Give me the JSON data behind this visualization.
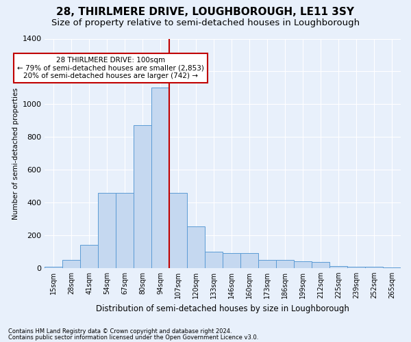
{
  "title1": "28, THIRLMERE DRIVE, LOUGHBOROUGH, LE11 3SY",
  "title2": "Size of property relative to semi-detached houses in Loughborough",
  "xlabel": "Distribution of semi-detached houses by size in Loughborough",
  "ylabel": "Number of semi-detached properties",
  "categories": [
    "15sqm",
    "28sqm",
    "41sqm",
    "54sqm",
    "67sqm",
    "80sqm",
    "94sqm",
    "107sqm",
    "120sqm",
    "133sqm",
    "146sqm",
    "160sqm",
    "173sqm",
    "186sqm",
    "199sqm",
    "212sqm",
    "225sqm",
    "239sqm",
    "252sqm",
    "265sqm"
  ],
  "values": [
    8,
    50,
    140,
    460,
    460,
    870,
    1100,
    460,
    255,
    100,
    90,
    90,
    50,
    50,
    40,
    35,
    10,
    8,
    8,
    4
  ],
  "bar_color": "#c5d8f0",
  "bar_edge_color": "#5b9bd5",
  "vline_color": "#c00000",
  "annotation_text": "28 THIRLMERE DRIVE: 100sqm\n← 79% of semi-detached houses are smaller (2,853)\n20% of semi-detached houses are larger (742) →",
  "annotation_box_color": "#ffffff",
  "annotation_box_edge": "#c00000",
  "footnote1": "Contains HM Land Registry data © Crown copyright and database right 2024.",
  "footnote2": "Contains public sector information licensed under the Open Government Licence v3.0.",
  "ylim": [
    0,
    1400
  ],
  "yticks": [
    0,
    200,
    400,
    600,
    800,
    1000,
    1200,
    1400
  ],
  "bg_color": "#e8f0fb",
  "plot_bg_color": "#e8f0fb",
  "title1_fontsize": 11,
  "title2_fontsize": 9.5,
  "grid_color": "#ffffff"
}
